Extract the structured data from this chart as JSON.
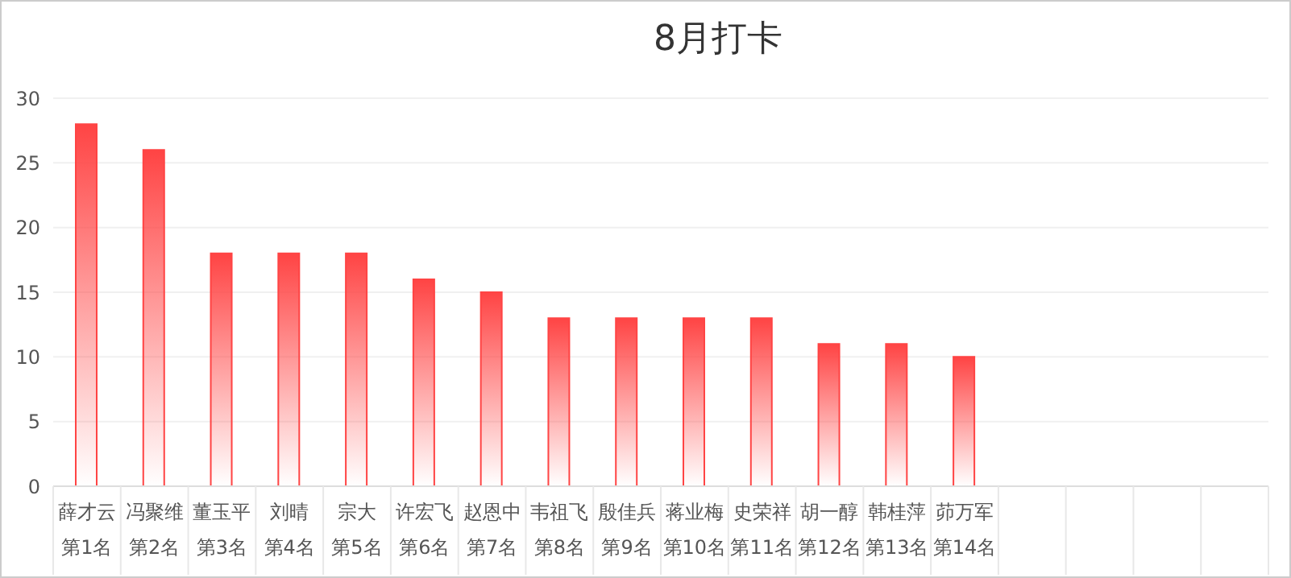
{
  "chart_data": {
    "type": "bar",
    "title": "8月打卡",
    "categories": [
      "薛才云第1名",
      "冯聚维第2名",
      "董玉平第3名",
      "刘晴第4名",
      "宗大第5名",
      "许宏飞第6名",
      "赵恩中第7名",
      "韦祖飞第8名",
      "殷佳兵第9名",
      "蒋业梅第10名",
      "史荣祥第11名",
      "胡一醇第12名",
      "韩桂萍第13名",
      "茆万军第14名",
      null,
      null,
      null,
      null
    ],
    "values": [
      28,
      26,
      18,
      18,
      18,
      16,
      15,
      13,
      13,
      13,
      13,
      11,
      11,
      10,
      null,
      null,
      null,
      null
    ],
    "color": "#ff4444",
    "ylim": [
      0,
      30
    ],
    "yticks": [
      0,
      5,
      10,
      15,
      20,
      25,
      30
    ],
    "grid": "y"
  }
}
